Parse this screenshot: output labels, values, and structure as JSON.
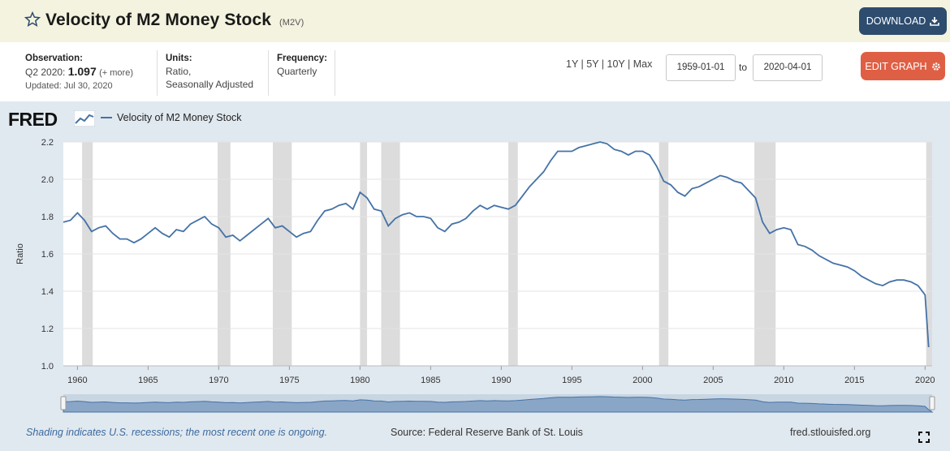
{
  "header": {
    "title": "Velocity of M2 Money Stock",
    "series_code": "(M2V)",
    "download_label": "DOWNLOAD"
  },
  "info": {
    "observation_label": "Observation:",
    "observation_period": "Q2 2020:",
    "observation_value": "1.097",
    "observation_more": "(+ more)",
    "updated": "Updated: Jul 30, 2020",
    "units_label": "Units:",
    "units_line1": "Ratio,",
    "units_line2": "Seasonally Adjusted",
    "frequency_label": "Frequency:",
    "frequency_value": "Quarterly"
  },
  "controls": {
    "range_links": "1Y | 5Y | 10Y | Max",
    "start_date": "1959-01-01",
    "to_label": "to",
    "end_date": "2020-04-01",
    "edit_label": "EDIT GRAPH"
  },
  "logo": "FRED",
  "footer": {
    "shading_note": "Shading indicates U.S. recessions; the most recent one is ongoing.",
    "source": "Source: Federal Reserve Bank of St. Louis",
    "url": "fred.stlouisfed.org"
  },
  "colors": {
    "line": "#4572a7",
    "recession": "#dcdcdc",
    "download_button": "#2d4c6e",
    "edit_button": "#df5f44",
    "title_bar": "#f4f3df",
    "panel": "#e1e9f0"
  },
  "chart_data": {
    "type": "line",
    "title": "",
    "xlabel": "",
    "ylabel": "Ratio",
    "ylim": [
      1.0,
      2.2
    ],
    "xlim": [
      1959.0,
      2020.5
    ],
    "y_ticks": [
      "1.0",
      "1.2",
      "1.4",
      "1.6",
      "1.8",
      "2.0",
      "2.2"
    ],
    "x_ticks": [
      "1960",
      "1965",
      "1970",
      "1975",
      "1980",
      "1985",
      "1990",
      "1995",
      "2000",
      "2005",
      "2010",
      "2015",
      "2020"
    ],
    "grid": true,
    "legend_position": "top-left",
    "series": [
      {
        "name": "Velocity of M2 Money Stock",
        "x": [
          1959.0,
          1959.5,
          1960.0,
          1960.5,
          1961.0,
          1961.5,
          1962.0,
          1962.5,
          1963.0,
          1963.5,
          1964.0,
          1964.5,
          1965.0,
          1965.5,
          1966.0,
          1966.5,
          1967.0,
          1967.5,
          1968.0,
          1968.5,
          1969.0,
          1969.5,
          1970.0,
          1970.5,
          1971.0,
          1971.5,
          1972.0,
          1972.5,
          1973.0,
          1973.5,
          1974.0,
          1974.5,
          1975.0,
          1975.5,
          1976.0,
          1976.5,
          1977.0,
          1977.5,
          1978.0,
          1978.5,
          1979.0,
          1979.5,
          1980.0,
          1980.5,
          1981.0,
          1981.5,
          1982.0,
          1982.5,
          1983.0,
          1983.5,
          1984.0,
          1984.5,
          1985.0,
          1985.5,
          1986.0,
          1986.5,
          1987.0,
          1987.5,
          1988.0,
          1988.5,
          1989.0,
          1989.5,
          1990.0,
          1990.5,
          1991.0,
          1991.5,
          1992.0,
          1992.5,
          1993.0,
          1993.5,
          1994.0,
          1994.5,
          1995.0,
          1995.5,
          1996.0,
          1996.5,
          1997.0,
          1997.5,
          1998.0,
          1998.5,
          1999.0,
          1999.5,
          2000.0,
          2000.5,
          2001.0,
          2001.5,
          2002.0,
          2002.5,
          2003.0,
          2003.5,
          2004.0,
          2004.5,
          2005.0,
          2005.5,
          2006.0,
          2006.5,
          2007.0,
          2007.5,
          2008.0,
          2008.5,
          2009.0,
          2009.5,
          2010.0,
          2010.5,
          2011.0,
          2011.5,
          2012.0,
          2012.5,
          2013.0,
          2013.5,
          2014.0,
          2014.5,
          2015.0,
          2015.5,
          2016.0,
          2016.5,
          2017.0,
          2017.5,
          2018.0,
          2018.5,
          2019.0,
          2019.5,
          2020.0,
          2020.25
        ],
        "values": [
          1.77,
          1.78,
          1.82,
          1.78,
          1.72,
          1.74,
          1.75,
          1.71,
          1.68,
          1.68,
          1.66,
          1.68,
          1.71,
          1.74,
          1.71,
          1.69,
          1.73,
          1.72,
          1.76,
          1.78,
          1.8,
          1.76,
          1.74,
          1.69,
          1.7,
          1.67,
          1.7,
          1.73,
          1.76,
          1.79,
          1.74,
          1.75,
          1.72,
          1.69,
          1.71,
          1.72,
          1.78,
          1.83,
          1.84,
          1.86,
          1.87,
          1.84,
          1.93,
          1.9,
          1.84,
          1.83,
          1.75,
          1.79,
          1.81,
          1.82,
          1.8,
          1.8,
          1.79,
          1.74,
          1.72,
          1.76,
          1.77,
          1.79,
          1.83,
          1.86,
          1.84,
          1.86,
          1.85,
          1.84,
          1.86,
          1.91,
          1.96,
          2.0,
          2.04,
          2.1,
          2.15,
          2.15,
          2.15,
          2.17,
          2.18,
          2.19,
          2.2,
          2.19,
          2.16,
          2.15,
          2.13,
          2.15,
          2.15,
          2.13,
          2.07,
          1.99,
          1.97,
          1.93,
          1.91,
          1.95,
          1.96,
          1.98,
          2.0,
          2.02,
          2.01,
          1.99,
          1.98,
          1.94,
          1.9,
          1.77,
          1.71,
          1.73,
          1.74,
          1.73,
          1.65,
          1.64,
          1.62,
          1.59,
          1.57,
          1.55,
          1.54,
          1.53,
          1.51,
          1.48,
          1.46,
          1.44,
          1.43,
          1.45,
          1.46,
          1.46,
          1.45,
          1.43,
          1.38,
          1.1
        ]
      }
    ],
    "recessions": [
      [
        1960.33,
        1961.08
      ],
      [
        1969.92,
        1970.83
      ],
      [
        1973.83,
        1975.17
      ],
      [
        1980.0,
        1980.5
      ],
      [
        1981.5,
        1982.83
      ],
      [
        1990.5,
        1991.17
      ],
      [
        2001.17,
        2001.83
      ],
      [
        2007.92,
        2009.42
      ],
      [
        2020.08,
        2020.5
      ]
    ]
  }
}
